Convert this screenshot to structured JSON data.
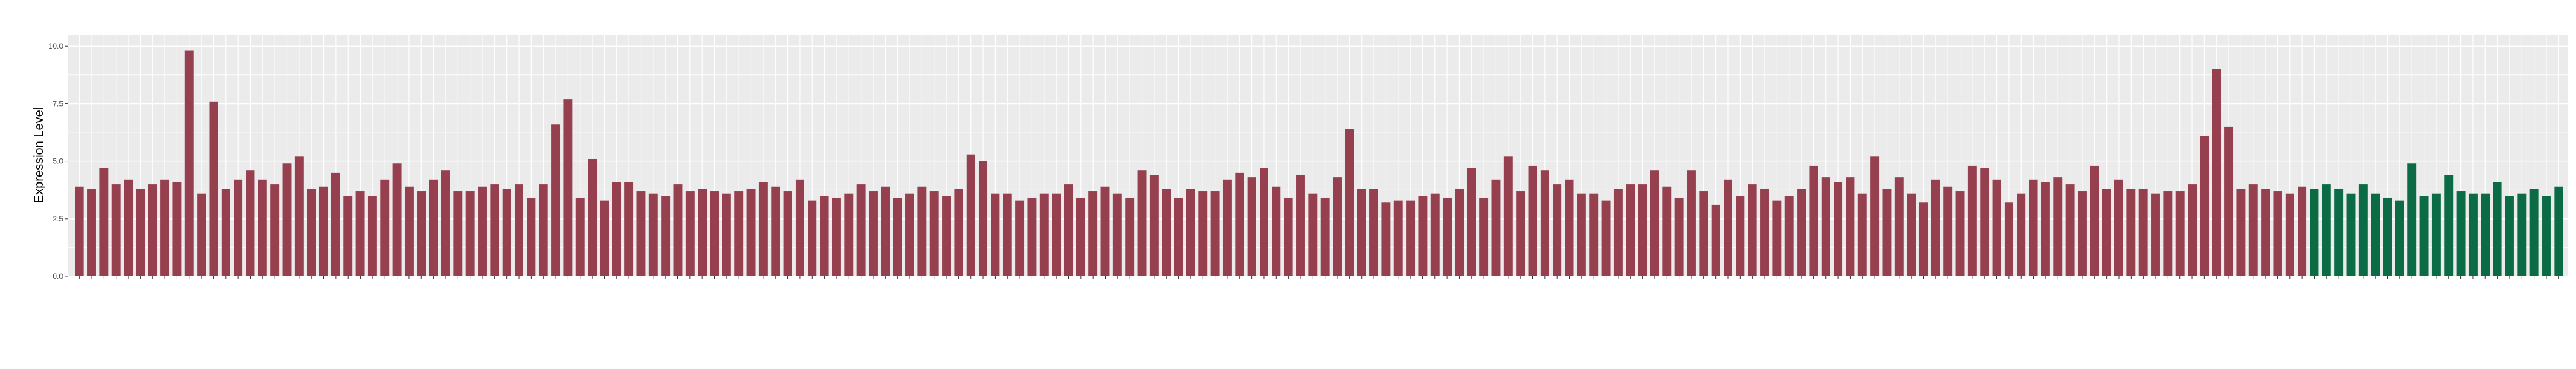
{
  "chart_data": {
    "type": "bar",
    "ylabel": "Expression Level",
    "ylim": [
      0,
      10.5
    ],
    "yticks": [
      0.0,
      2.5,
      5.0,
      7.5,
      10.0
    ],
    "ytick_labels": [
      "0.0",
      "2.5",
      "5.0",
      "7.5",
      "10.0"
    ],
    "grid": true,
    "colors": {
      "group_a": "#96404F",
      "group_b": "#0B6B45",
      "panel_bg": "#EBEBEB",
      "grid": "#FFFFFF"
    },
    "tick_label_note": "Category labels are rotated 45° and too small to read reliably in the screenshot; the cohort is shown by bar color (two groups).",
    "groups": [
      {
        "group": "a",
        "values": [
          3.9,
          3.8,
          4.7,
          4.0,
          4.2,
          3.8,
          4.0,
          4.2,
          4.1,
          9.8,
          3.6,
          7.6,
          3.8,
          4.2,
          4.6,
          4.2,
          4.0,
          4.9,
          5.2,
          3.8,
          3.9,
          4.5,
          3.5,
          3.7,
          3.5,
          4.2,
          4.9,
          3.9,
          3.7,
          4.2,
          4.6,
          3.7,
          3.7,
          3.9,
          4.0,
          3.8,
          4.0,
          3.4,
          4.0,
          6.6,
          7.7,
          3.4,
          5.1,
          3.3,
          4.1,
          4.1,
          3.7,
          3.6,
          3.5,
          4.0,
          3.7,
          3.8,
          3.7,
          3.6,
          3.7,
          3.8,
          4.1,
          3.9,
          3.7,
          4.2,
          3.3,
          3.5,
          3.4,
          3.6,
          4.0,
          3.7,
          3.9,
          3.4,
          3.6,
          3.9,
          3.7,
          3.5,
          3.8,
          5.3,
          5.0,
          3.6,
          3.6,
          3.3,
          3.4,
          3.6,
          3.6,
          4.0,
          3.4,
          3.7,
          3.9,
          3.6,
          3.4,
          4.6,
          4.4,
          3.8,
          3.4,
          3.8,
          3.7,
          3.7,
          4.2,
          4.5,
          4.3,
          4.7,
          3.9,
          3.4,
          4.4,
          3.6,
          3.4,
          4.3,
          6.4,
          3.8,
          3.8,
          3.2,
          3.3,
          3.3,
          3.5,
          3.6,
          3.4,
          3.8,
          4.7,
          3.4,
          4.2,
          5.2,
          3.7,
          4.8,
          4.6,
          4.0,
          4.2,
          3.6,
          3.6,
          3.3,
          3.8,
          4.0,
          4.0,
          4.6,
          3.9,
          3.4,
          4.6,
          3.7,
          3.1,
          4.2,
          3.5,
          4.0,
          3.8,
          3.3,
          3.5,
          3.8,
          4.8,
          4.3,
          4.1,
          4.3,
          3.6,
          5.2,
          3.8,
          4.3,
          3.6,
          3.2,
          4.2,
          3.9,
          3.7,
          4.8,
          4.7,
          4.2,
          3.2,
          3.6,
          4.2,
          4.1,
          4.3,
          4.0,
          3.7,
          4.8,
          3.8,
          4.2,
          3.8,
          3.8,
          3.6,
          3.7,
          3.7,
          4.0,
          6.1,
          9.0,
          6.5,
          3.8,
          4.0,
          3.8,
          3.7,
          3.6,
          3.9
        ]
      },
      {
        "group": "b",
        "values": [
          3.8,
          4.0,
          3.8,
          3.6,
          4.0,
          3.6,
          3.4,
          3.3,
          4.9,
          3.5,
          3.6,
          4.4,
          3.7,
          3.6,
          3.6,
          4.1,
          3.5,
          3.6,
          3.8,
          3.5,
          3.9
        ]
      }
    ]
  }
}
